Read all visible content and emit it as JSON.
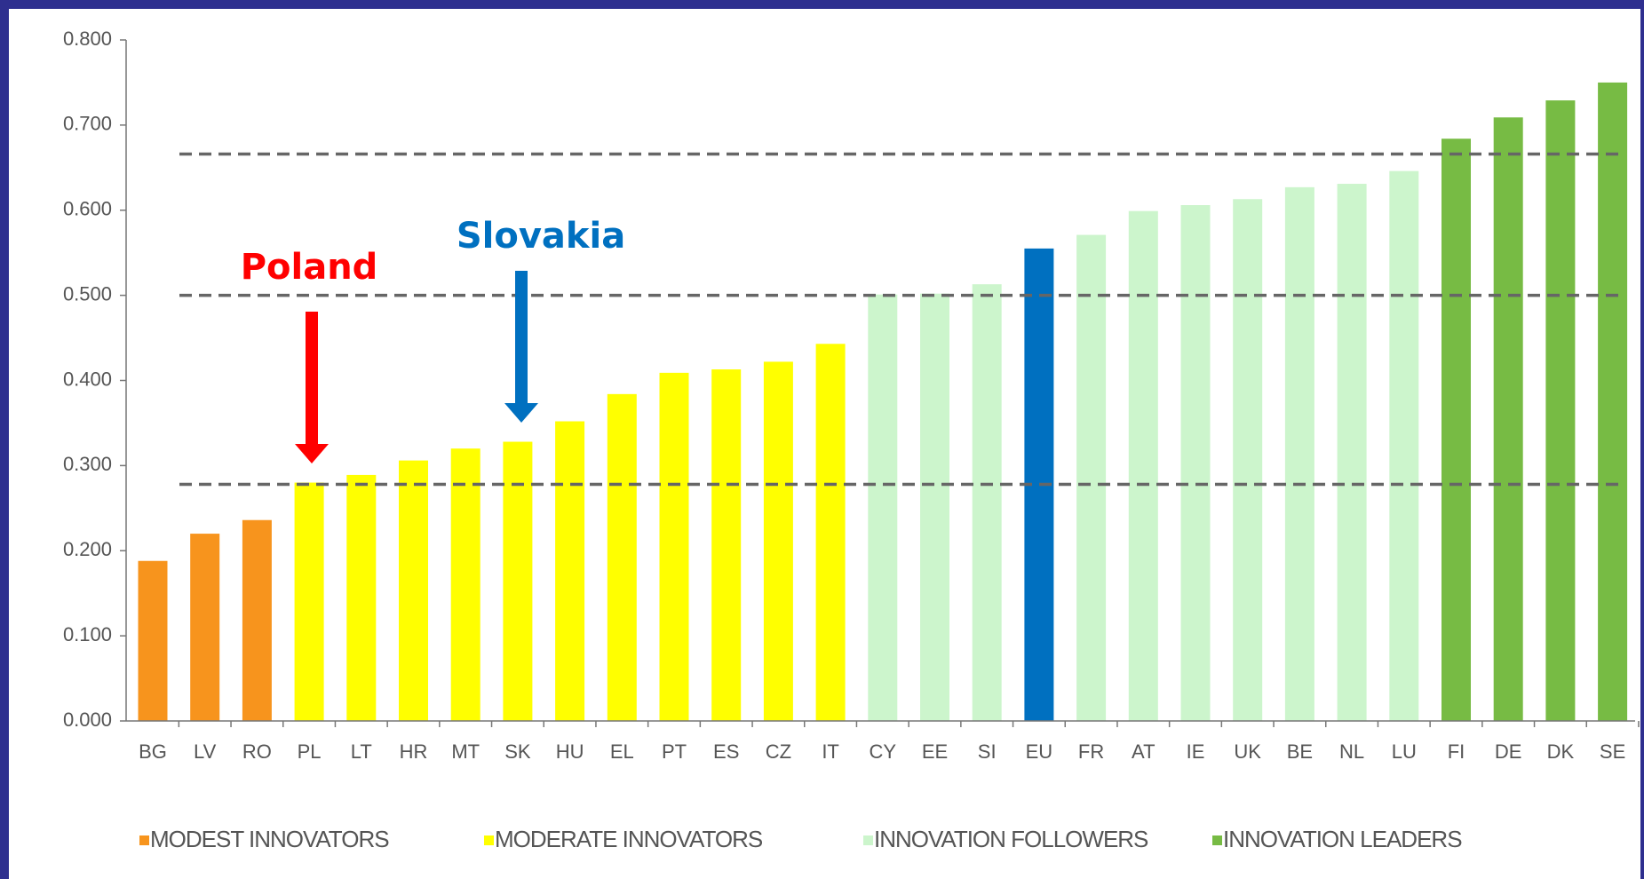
{
  "chart_data": {
    "type": "bar",
    "categories": [
      "BG",
      "LV",
      "RO",
      "PL",
      "LT",
      "HR",
      "MT",
      "SK",
      "HU",
      "EL",
      "PT",
      "ES",
      "CZ",
      "IT",
      "CY",
      "EE",
      "SI",
      "EU",
      "FR",
      "AT",
      "IE",
      "UK",
      "BE",
      "NL",
      "LU",
      "FI",
      "DE",
      "DK",
      "SE"
    ],
    "values": [
      0.188,
      0.22,
      0.236,
      0.28,
      0.289,
      0.306,
      0.32,
      0.328,
      0.352,
      0.384,
      0.409,
      0.413,
      0.422,
      0.443,
      0.501,
      0.502,
      0.513,
      0.555,
      0.571,
      0.599,
      0.606,
      0.613,
      0.627,
      0.631,
      0.646,
      0.684,
      0.709,
      0.729,
      0.75
    ],
    "colors": [
      "#f7941d",
      "#f7941d",
      "#f7941d",
      "#ffff00",
      "#ffff00",
      "#ffff00",
      "#ffff00",
      "#ffff00",
      "#ffff00",
      "#ffff00",
      "#ffff00",
      "#ffff00",
      "#ffff00",
      "#ffff00",
      "#ccf5cc",
      "#ccf5cc",
      "#ccf5cc",
      "#0070c0",
      "#ccf5cc",
      "#ccf5cc",
      "#ccf5cc",
      "#ccf5cc",
      "#ccf5cc",
      "#ccf5cc",
      "#ccf5cc",
      "#77bb44",
      "#77bb44",
      "#77bb44",
      "#77bb44"
    ],
    "ylim": [
      0,
      0.8
    ],
    "yticks": [
      {
        "value": 0,
        "label": "0.000"
      },
      {
        "value": 0.1,
        "label": "0.100"
      },
      {
        "value": 0.2,
        "label": "0.200"
      },
      {
        "value": 0.3,
        "label": "0.300"
      },
      {
        "value": 0.4,
        "label": "0.400"
      },
      {
        "value": 0.5,
        "label": "0.500"
      },
      {
        "value": 0.6,
        "label": "0.600"
      },
      {
        "value": 0.7,
        "label": "0.700"
      },
      {
        "value": 0.8,
        "label": "0.800"
      }
    ],
    "reference_lines": [
      0.666,
      0.5,
      0.278
    ],
    "legend": [
      {
        "name": "MODEST INNOVATORS",
        "color": "#f7941d"
      },
      {
        "name": "MODERATE INNOVATORS",
        "color": "#ffff00"
      },
      {
        "name": "INNOVATION FOLLOWERS",
        "color": "#ccf5cc"
      },
      {
        "name": "INNOVATION LEADERS",
        "color": "#77bb44"
      }
    ],
    "annotations": [
      {
        "text": "Poland",
        "color": "#ff0000"
      },
      {
        "text": "Slovakia",
        "color": "#0070c0"
      }
    ]
  }
}
